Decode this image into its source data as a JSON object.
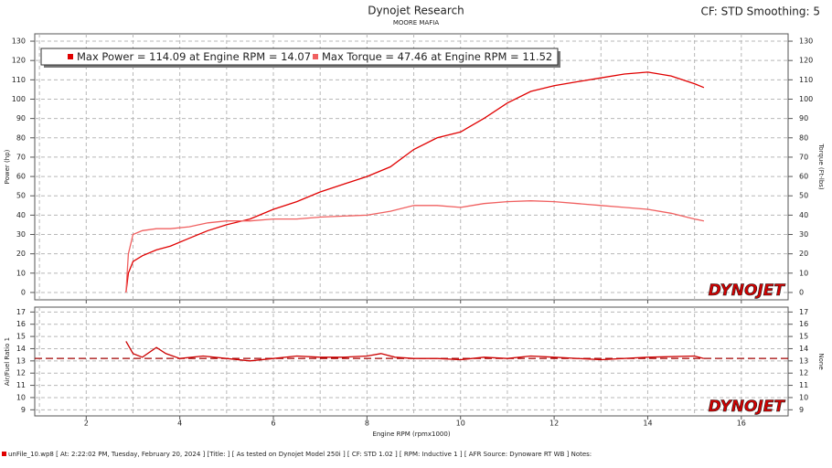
{
  "title": "Dynojet Research",
  "subtitle": "MOORE MAFIA",
  "settings_text": "CF: STD Smoothing: 5",
  "footer": "unFile_10.wp8 [ At: 2:22:02 PM, Tuesday, February 20, 2024 ] [Title: ] [ As tested on Dynojet Model 250i ] [ CF: STD 1.02 ] [ RPM: Inductive 1 ] [ AFR Source: Dynoware RT WB ] Notes:",
  "chart_data": [
    {
      "type": "line",
      "ylabel": "Power (hp)",
      "y2label": "Torque (Ft-lbs)",
      "logo": "DYNOJET",
      "grid": true,
      "xlim": [
        0.9,
        17.0
      ],
      "xticks": [
        2,
        4,
        6,
        8,
        10,
        12,
        14,
        16
      ],
      "xminorticks": [
        1,
        3,
        5,
        7,
        9,
        11,
        13,
        15
      ],
      "ylim": [
        -3.8,
        133.8
      ],
      "yticks": [
        0,
        10,
        20,
        30,
        40,
        50,
        60,
        70,
        80,
        90,
        100,
        110,
        120,
        130
      ],
      "y2lim": [
        -3.8,
        133.8
      ],
      "y2ticks": [
        0,
        10,
        20,
        30,
        40,
        50,
        60,
        70,
        80,
        90,
        100,
        110,
        120,
        130
      ],
      "x": [
        2.85,
        2.9,
        3.0,
        3.2,
        3.5,
        3.8,
        4.2,
        4.6,
        5.0,
        5.5,
        6.0,
        6.5,
        7.0,
        7.5,
        8.0,
        8.5,
        9.0,
        9.5,
        10.0,
        10.5,
        11.0,
        11.5,
        12.0,
        12.5,
        13.0,
        13.5,
        14.0,
        14.5,
        15.0,
        15.2
      ],
      "series": [
        {
          "name": "Max Power = 114.09 at Engine RPM = 14.07",
          "color": "#e00000",
          "axis": "y",
          "values": [
            0,
            10,
            16,
            19,
            22,
            24,
            28,
            32,
            35,
            38,
            43,
            47,
            52,
            56,
            60,
            65,
            74,
            80,
            83,
            90,
            98,
            104,
            107,
            109,
            111,
            113,
            114,
            112,
            108,
            106
          ]
        },
        {
          "name": "Max Torque = 47.46 at Engine RPM = 11.52",
          "color": "#f06060",
          "axis": "y2",
          "values": [
            0,
            20,
            30,
            32,
            33,
            33,
            34,
            36,
            37,
            37,
            38,
            38,
            39,
            39.5,
            40,
            42,
            45,
            45,
            44,
            46,
            47,
            47.4,
            47,
            46,
            45,
            44,
            43,
            41,
            38,
            37
          ]
        }
      ]
    },
    {
      "type": "line",
      "ylabel": "Air/Fuel Ratio 1",
      "y2label": "None",
      "xlabel": "Engine RPM (rpmx1000)",
      "logo": "DYNOJET",
      "grid": true,
      "xlim": [
        0.9,
        17.0
      ],
      "xticks": [
        2,
        4,
        6,
        8,
        10,
        12,
        14,
        16
      ],
      "xminorticks": [
        1,
        3,
        5,
        7,
        9,
        11,
        13,
        15
      ],
      "ylim": [
        8.5,
        17.4
      ],
      "yticks": [
        9,
        10,
        11,
        12,
        13,
        14,
        15,
        16,
        17
      ],
      "y2lim": [
        8.5,
        17.4
      ],
      "y2ticks": [
        9,
        10,
        11,
        12,
        13,
        14,
        15,
        16,
        17
      ],
      "reference_line": 13.2,
      "reference_color": "#a00000",
      "x": [
        2.85,
        3.0,
        3.2,
        3.5,
        3.7,
        4.0,
        4.5,
        5.0,
        5.5,
        6.0,
        6.5,
        7.0,
        7.5,
        8.0,
        8.3,
        8.6,
        9.0,
        9.5,
        10.0,
        10.5,
        11.0,
        11.5,
        12.0,
        13.0,
        14.0,
        15.0,
        15.2
      ],
      "series": [
        {
          "name": "Air/Fuel Ratio 1",
          "color": "#cc0000",
          "axis": "y",
          "values": [
            14.6,
            13.6,
            13.3,
            14.1,
            13.6,
            13.2,
            13.4,
            13.2,
            13.0,
            13.2,
            13.4,
            13.3,
            13.3,
            13.4,
            13.6,
            13.3,
            13.2,
            13.2,
            13.1,
            13.3,
            13.2,
            13.4,
            13.3,
            13.1,
            13.3,
            13.4,
            13.2
          ]
        }
      ]
    }
  ]
}
